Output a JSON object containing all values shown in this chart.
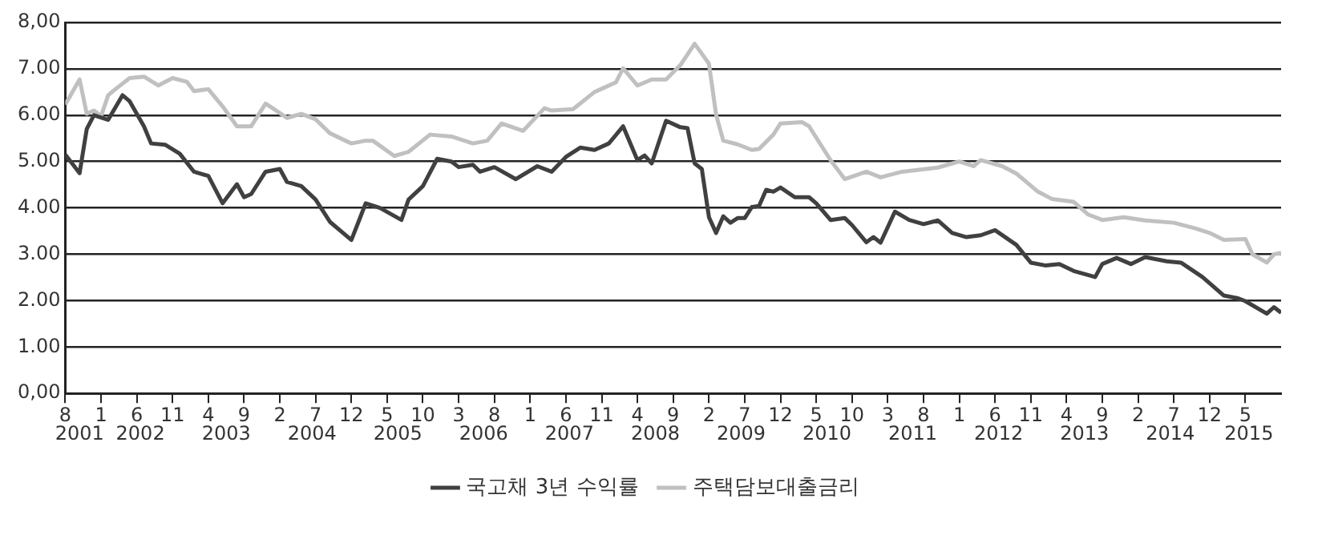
{
  "chart_data": {
    "type": "line",
    "xlim": [
      "2001-08",
      "2015-10"
    ],
    "xticks": [
      {
        "value": "2001-08",
        "label": "8"
      },
      {
        "value": "2002-01",
        "label": "1"
      },
      {
        "value": "2002-06",
        "label": "6"
      },
      {
        "value": "2002-11",
        "label": "11"
      },
      {
        "value": "2003-04",
        "label": "4"
      },
      {
        "value": "2003-09",
        "label": "9"
      },
      {
        "value": "2004-02",
        "label": "2"
      },
      {
        "value": "2004-07",
        "label": "7"
      },
      {
        "value": "2004-12",
        "label": "12"
      },
      {
        "value": "2005-05",
        "label": "5"
      },
      {
        "value": "2005-10",
        "label": "10"
      },
      {
        "value": "2006-03",
        "label": "3"
      },
      {
        "value": "2006-08",
        "label": "8"
      },
      {
        "value": "2007-01",
        "label": "1"
      },
      {
        "value": "2007-06",
        "label": "6"
      },
      {
        "value": "2007-11",
        "label": "11"
      },
      {
        "value": "2008-04",
        "label": "4"
      },
      {
        "value": "2008-09",
        "label": "9"
      },
      {
        "value": "2009-02",
        "label": "2"
      },
      {
        "value": "2009-07",
        "label": "7"
      },
      {
        "value": "2009-12",
        "label": "12"
      },
      {
        "value": "2010-05",
        "label": "5"
      },
      {
        "value": "2010-10",
        "label": "10"
      },
      {
        "value": "2011-03",
        "label": "3"
      },
      {
        "value": "2011-08",
        "label": "8"
      },
      {
        "value": "2012-01",
        "label": "1"
      },
      {
        "value": "2012-06",
        "label": "6"
      },
      {
        "value": "2012-11",
        "label": "11"
      },
      {
        "value": "2013-04",
        "label": "4"
      },
      {
        "value": "2013-09",
        "label": "9"
      },
      {
        "value": "2014-02",
        "label": "2"
      },
      {
        "value": "2014-07",
        "label": "7"
      },
      {
        "value": "2014-12",
        "label": "12"
      },
      {
        "value": "2015-05",
        "label": "5"
      }
    ],
    "ylim": [
      0,
      8
    ],
    "yticks": [
      {
        "value": 0,
        "label": "0,00"
      },
      {
        "value": 1,
        "label": "1.00"
      },
      {
        "value": 2,
        "label": "2.00"
      },
      {
        "value": 3,
        "label": "3.00"
      },
      {
        "value": 4,
        "label": "4.00"
      },
      {
        "value": 5,
        "label": "5.00"
      },
      {
        "value": 6,
        "label": "6.00"
      },
      {
        "value": 7,
        "label": "7.00"
      },
      {
        "value": 8,
        "label": "8,00"
      }
    ],
    "grid": "y",
    "legend": "bottom",
    "marker": "none",
    "line_style": "solid",
    "annotations": [
      "2001",
      "2002",
      "2003",
      "2004",
      "2005",
      "2006",
      "2007",
      "2008",
      "2009",
      "2010",
      "2011",
      "2012",
      "2013",
      "2014",
      "2015"
    ],
    "series": [
      {
        "name": "국고채 3년 수익률",
        "color": "#404040",
        "x": [
          "2001-08",
          "2001-10",
          "2001-11",
          "2001-12",
          "2002-02",
          "2002-04",
          "2002-05",
          "2002-07",
          "2002-08",
          "2002-10",
          "2002-12",
          "2003-02",
          "2003-04",
          "2003-06",
          "2003-08",
          "2003-09",
          "2003-10",
          "2003-12",
          "2004-02",
          "2004-03",
          "2004-05",
          "2004-07",
          "2004-09",
          "2004-12",
          "2005-01",
          "2005-02",
          "2005-04",
          "2005-07",
          "2005-08",
          "2005-10",
          "2005-12",
          "2006-02",
          "2006-03",
          "2006-05",
          "2006-06",
          "2006-08",
          "2006-11",
          "2007-02",
          "2007-04",
          "2007-06",
          "2007-08",
          "2007-10",
          "2007-12",
          "2008-02",
          "2008-04",
          "2008-05",
          "2008-06",
          "2008-08",
          "2008-10",
          "2008-11",
          "2008-12",
          "2009-01",
          "2009-02",
          "2009-03",
          "2009-04",
          "2009-05",
          "2009-06",
          "2009-07",
          "2009-08",
          "2009-09",
          "2009-10",
          "2009-11",
          "2009-12",
          "2010-02",
          "2010-04",
          "2010-05",
          "2010-07",
          "2010-09",
          "2010-10",
          "2010-12",
          "2011-01",
          "2011-02",
          "2011-04",
          "2011-06",
          "2011-08",
          "2011-10",
          "2011-12",
          "2012-02",
          "2012-04",
          "2012-06",
          "2012-09",
          "2012-11",
          "2013-01",
          "2013-03",
          "2013-05",
          "2013-08",
          "2013-09",
          "2013-11",
          "2014-01",
          "2014-03",
          "2014-06",
          "2014-08",
          "2014-11",
          "2015-02",
          "2015-04",
          "2015-05",
          "2015-08",
          "2015-09",
          "2015-10"
        ],
        "values": [
          5.15,
          4.75,
          5.7,
          6.0,
          5.9,
          6.43,
          6.3,
          5.76,
          5.39,
          5.36,
          5.17,
          4.78,
          4.69,
          4.1,
          4.51,
          4.23,
          4.3,
          4.78,
          4.84,
          4.56,
          4.47,
          4.18,
          3.7,
          3.31,
          3.7,
          4.1,
          4.0,
          3.74,
          4.18,
          4.47,
          5.06,
          5.0,
          4.88,
          4.93,
          4.78,
          4.88,
          4.62,
          4.9,
          4.78,
          5.1,
          5.3,
          5.25,
          5.39,
          5.76,
          5.03,
          5.13,
          4.96,
          5.88,
          5.74,
          5.72,
          4.96,
          4.84,
          3.8,
          3.46,
          3.82,
          3.68,
          3.78,
          3.78,
          4.02,
          4.04,
          4.39,
          4.35,
          4.44,
          4.23,
          4.23,
          4.1,
          3.74,
          3.78,
          3.63,
          3.26,
          3.37,
          3.25,
          3.92,
          3.74,
          3.65,
          3.73,
          3.46,
          3.37,
          3.41,
          3.52,
          3.2,
          2.82,
          2.76,
          2.79,
          2.64,
          2.51,
          2.79,
          2.92,
          2.79,
          2.94,
          2.85,
          2.82,
          2.51,
          2.11,
          2.05,
          1.99,
          1.72,
          1.86,
          1.74
        ]
      },
      {
        "name": "주택담보대출금리",
        "color": "#c0c0c0",
        "x": [
          "2001-08",
          "2001-10",
          "2001-11",
          "2001-12",
          "2002-01",
          "2002-02",
          "2002-03",
          "2002-05",
          "2002-07",
          "2002-09",
          "2002-11",
          "2003-01",
          "2003-02",
          "2003-04",
          "2003-06",
          "2003-08",
          "2003-10",
          "2003-12",
          "2004-01",
          "2004-03",
          "2004-05",
          "2004-07",
          "2004-09",
          "2004-12",
          "2005-02",
          "2005-03",
          "2005-06",
          "2005-08",
          "2005-11",
          "2006-02",
          "2006-05",
          "2006-07",
          "2006-09",
          "2006-12",
          "2007-03",
          "2007-04",
          "2007-07",
          "2007-10",
          "2008-01",
          "2008-02",
          "2008-04",
          "2008-06",
          "2008-08",
          "2008-10",
          "2008-12",
          "2009-02",
          "2009-03",
          "2009-04",
          "2009-06",
          "2009-08",
          "2009-09",
          "2009-11",
          "2009-12",
          "2010-03",
          "2010-04",
          "2010-07",
          "2010-09",
          "2010-12",
          "2011-02",
          "2011-05",
          "2011-10",
          "2012-01",
          "2012-03",
          "2012-04",
          "2012-07",
          "2012-09",
          "2012-12",
          "2013-02",
          "2013-05",
          "2013-07",
          "2013-09",
          "2013-12",
          "2014-03",
          "2014-07",
          "2014-10",
          "2014-12",
          "2015-02",
          "2015-05",
          "2015-06",
          "2015-08",
          "2015-09",
          "2015-10"
        ],
        "values": [
          6.23,
          6.77,
          6.03,
          6.1,
          5.98,
          6.43,
          6.56,
          6.8,
          6.83,
          6.64,
          6.8,
          6.72,
          6.52,
          6.56,
          6.19,
          5.76,
          5.76,
          6.25,
          6.15,
          5.94,
          6.03,
          5.91,
          5.61,
          5.39,
          5.45,
          5.45,
          5.12,
          5.21,
          5.58,
          5.54,
          5.39,
          5.45,
          5.82,
          5.66,
          6.15,
          6.1,
          6.13,
          6.5,
          6.71,
          7.01,
          6.64,
          6.77,
          6.77,
          7.08,
          7.54,
          7.11,
          6.01,
          5.45,
          5.37,
          5.25,
          5.27,
          5.58,
          5.82,
          5.85,
          5.76,
          5.03,
          4.62,
          4.78,
          4.66,
          4.78,
          4.87,
          5.0,
          4.9,
          5.03,
          4.9,
          4.74,
          4.35,
          4.19,
          4.13,
          3.86,
          3.74,
          3.8,
          3.73,
          3.68,
          3.56,
          3.46,
          3.31,
          3.33,
          3.0,
          2.82,
          3.0,
          3.03
        ]
      }
    ]
  }
}
